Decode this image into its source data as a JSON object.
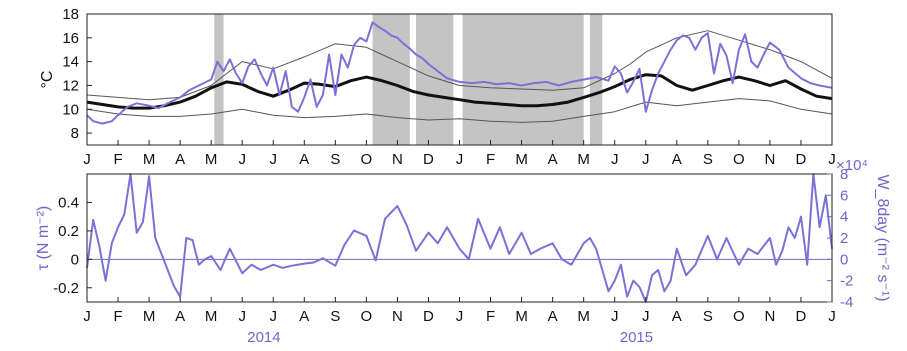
{
  "chart_data": [
    {
      "type": "line",
      "ylabel": "°C",
      "ylim": [
        7,
        18
      ],
      "yticks": [
        8,
        10,
        12,
        14,
        16,
        18
      ],
      "x_axis": {
        "unit": "month index from Jan 2014",
        "range": [
          0,
          24
        ],
        "tick_labels": [
          "J",
          "F",
          "M",
          "A",
          "M",
          "J",
          "J",
          "A",
          "S",
          "O",
          "N",
          "D",
          "J",
          "F",
          "M",
          "A",
          "M",
          "J",
          "J",
          "A",
          "S",
          "O",
          "N",
          "D",
          "J"
        ]
      },
      "shaded_gaps": [
        [
          4.1,
          4.4
        ],
        [
          9.2,
          10.4
        ],
        [
          10.6,
          11.8
        ],
        [
          12.1,
          16.0
        ],
        [
          16.2,
          16.6
        ]
      ],
      "series": [
        {
          "color": "#111111",
          "x": [
            0,
            0.5,
            1,
            1.5,
            2,
            2.5,
            3,
            3.5,
            4,
            4.5,
            5,
            5.5,
            6,
            6.5,
            7,
            7.5,
            8,
            8.5,
            9,
            9.5,
            10,
            10.5,
            11,
            11.5,
            12,
            12.5,
            13,
            13.5,
            14,
            14.5,
            15,
            15.5,
            16,
            16.5,
            17,
            17.5,
            18,
            18.5,
            19,
            19.5,
            20,
            20.5,
            21,
            21.5,
            22,
            22.5,
            23,
            23.5,
            24
          ],
          "y": [
            10.6,
            10.4,
            10.2,
            10.1,
            10.1,
            10.3,
            10.6,
            11.1,
            11.8,
            12.3,
            12.1,
            11.5,
            11.1,
            11.6,
            12.2,
            12.1,
            11.9,
            12.4,
            12.7,
            12.4,
            12.0,
            11.5,
            11.2,
            11.0,
            10.8,
            10.6,
            10.5,
            10.4,
            10.3,
            10.3,
            10.4,
            10.6,
            11.0,
            11.4,
            11.9,
            12.5,
            12.9,
            12.8,
            12.0,
            11.6,
            12.0,
            12.4,
            12.7,
            12.4,
            12.0,
            12.4,
            11.7,
            11.1,
            10.9
          ]
        },
        {
          "color": "#555555",
          "x": [
            0,
            1,
            2,
            3,
            4,
            4.5,
            5,
            6,
            7,
            8,
            9,
            9.5,
            10,
            11,
            12,
            13,
            14,
            15,
            16,
            17,
            17.5,
            18,
            19,
            20,
            21,
            22,
            23,
            24
          ],
          "y": [
            11.2,
            11.0,
            10.8,
            11.0,
            12.0,
            13.0,
            14.0,
            13.4,
            14.4,
            15.5,
            15.2,
            14.6,
            14.0,
            12.8,
            12.0,
            11.8,
            11.7,
            11.6,
            11.8,
            13.0,
            13.8,
            14.8,
            16.0,
            16.6,
            15.8,
            15.0,
            14.0,
            12.6
          ]
        },
        {
          "color": "#555555",
          "x": [
            0,
            1,
            2,
            3,
            4,
            5,
            6,
            7,
            8,
            9,
            10,
            11,
            12,
            13,
            14,
            15,
            16,
            17,
            18,
            19,
            20,
            21,
            22,
            23,
            24
          ],
          "y": [
            10.0,
            9.6,
            9.4,
            9.4,
            9.6,
            10.0,
            9.5,
            9.3,
            9.4,
            9.6,
            9.3,
            9.1,
            9.2,
            9.0,
            8.9,
            9.0,
            9.4,
            9.8,
            10.6,
            10.3,
            10.6,
            10.9,
            10.7,
            10.0,
            9.6
          ]
        },
        {
          "color": "#7b71d6",
          "x": [
            0,
            0.2,
            0.5,
            0.8,
            1.0,
            1.3,
            1.6,
            2.0,
            2.3,
            2.6,
            3.0,
            3.3,
            3.6,
            4.0,
            4.2,
            4.4,
            4.6,
            4.8,
            5.0,
            5.2,
            5.4,
            5.6,
            5.8,
            6.0,
            6.2,
            6.4,
            6.6,
            6.8,
            7.0,
            7.2,
            7.4,
            7.6,
            7.8,
            8.0,
            8.2,
            8.4,
            8.6,
            8.8,
            9.0,
            9.2,
            9.4,
            9.6,
            9.8,
            10.0,
            10.2,
            10.4,
            10.6,
            10.8,
            11.0,
            11.3,
            11.6,
            12.0,
            12.4,
            12.8,
            13.2,
            13.6,
            14.0,
            14.4,
            14.8,
            15.2,
            15.6,
            16.0,
            16.4,
            16.8,
            17.0,
            17.2,
            17.4,
            17.6,
            17.8,
            18.0,
            18.2,
            18.4,
            18.6,
            18.8,
            19.0,
            19.2,
            19.4,
            19.6,
            19.8,
            20.0,
            20.2,
            20.4,
            20.6,
            20.8,
            21.0,
            21.2,
            21.4,
            21.6,
            21.8,
            22.0,
            22.3,
            22.6,
            23.0,
            23.3,
            23.6,
            24.0
          ],
          "y": [
            9.5,
            9.0,
            8.8,
            9.0,
            9.5,
            10.2,
            10.5,
            10.3,
            10.1,
            10.5,
            11.0,
            11.6,
            12.0,
            12.5,
            14.0,
            13.2,
            14.2,
            13.0,
            12.2,
            13.6,
            14.2,
            13.0,
            12.0,
            13.5,
            11.2,
            13.2,
            10.2,
            9.8,
            11.0,
            12.5,
            10.2,
            11.2,
            14.6,
            11.2,
            14.6,
            13.5,
            15.4,
            16.0,
            15.7,
            17.3,
            16.9,
            16.6,
            16.2,
            16.0,
            15.5,
            15.1,
            14.6,
            14.3,
            13.8,
            13.2,
            12.6,
            12.3,
            12.2,
            12.3,
            12.1,
            12.2,
            12.0,
            12.2,
            12.3,
            12.0,
            12.3,
            12.5,
            12.7,
            12.4,
            13.6,
            13.0,
            11.4,
            12.3,
            13.4,
            9.8,
            11.6,
            13.0,
            14.0,
            15.0,
            15.8,
            16.2,
            16.0,
            15.0,
            16.0,
            16.4,
            13.0,
            15.5,
            14.5,
            12.2,
            15.0,
            16.3,
            14.0,
            13.5,
            14.6,
            15.6,
            15.0,
            13.5,
            12.6,
            12.2,
            12.0,
            11.8
          ]
        }
      ]
    },
    {
      "type": "line",
      "ylabel": "τ (N m⁻²)",
      "ylabel_right": "W_8day (m⁻² s⁻¹)",
      "ylim": [
        -0.3,
        0.6
      ],
      "yticks": [
        -0.2,
        0,
        0.2,
        0.4
      ],
      "ylim_right": [
        -4,
        8
      ],
      "yticks_right": [
        -4,
        -2,
        0,
        2,
        4,
        6,
        8
      ],
      "right_multiplier": "×10⁴",
      "x_axis": {
        "unit": "month index from Jan 2014",
        "range": [
          0,
          24
        ],
        "tick_labels": [
          "J",
          "F",
          "M",
          "A",
          "M",
          "J",
          "J",
          "A",
          "S",
          "O",
          "N",
          "D",
          "J",
          "F",
          "M",
          "A",
          "M",
          "J",
          "J",
          "A",
          "S",
          "O",
          "N",
          "D",
          "J"
        ],
        "year_labels": [
          {
            "label": "2014",
            "x": 5.7
          },
          {
            "label": "2015",
            "x": 17.7
          }
        ]
      },
      "series": [
        {
          "color": "#7b71d6",
          "axis": "right",
          "x": [
            0,
            0.2,
            0.4,
            0.6,
            0.8,
            1.0,
            1.2,
            1.4,
            1.6,
            1.8,
            2.0,
            2.2,
            2.4,
            2.6,
            2.8,
            3.0,
            3.2,
            3.4,
            3.6,
            3.8,
            4.0,
            4.3,
            4.6,
            5.0,
            5.3,
            5.6,
            6.0,
            6.3,
            6.6,
            7.0,
            7.3,
            7.6,
            8.0,
            8.3,
            8.6,
            9.0,
            9.3,
            9.6,
            10.0,
            10.3,
            10.6,
            11.0,
            11.3,
            11.6,
            12.0,
            12.3,
            12.6,
            13.0,
            13.3,
            13.6,
            14.0,
            14.3,
            14.6,
            15.0,
            15.3,
            15.6,
            16.0,
            16.2,
            16.4,
            16.6,
            16.8,
            17.0,
            17.2,
            17.4,
            17.6,
            17.8,
            18.0,
            18.2,
            18.4,
            18.6,
            18.8,
            19.0,
            19.3,
            19.6,
            20.0,
            20.3,
            20.6,
            21.0,
            21.3,
            21.6,
            22.0,
            22.2,
            22.4,
            22.6,
            22.8,
            23.0,
            23.2,
            23.4,
            23.6,
            23.8,
            24.0
          ],
          "y": [
            -0.8,
            3.7,
            1.2,
            -2.0,
            1.5,
            3.0,
            4.2,
            8.0,
            2.5,
            3.5,
            7.8,
            2.0,
            0.5,
            -1.0,
            -2.5,
            -3.5,
            2.0,
            1.8,
            -0.5,
            0.0,
            0.3,
            -1.0,
            1.0,
            -1.3,
            -0.5,
            -1.0,
            -0.5,
            -0.8,
            -0.6,
            -0.4,
            -0.3,
            0.1,
            -0.6,
            1.4,
            2.7,
            2.2,
            -0.1,
            3.8,
            5.0,
            3.2,
            0.8,
            2.5,
            1.5,
            3.0,
            1.0,
            0.0,
            3.8,
            1.0,
            3.0,
            0.5,
            2.5,
            0.5,
            1.0,
            1.5,
            0.0,
            -0.5,
            1.5,
            2.0,
            1.0,
            -1.0,
            -3.0,
            -2.0,
            -0.5,
            -3.5,
            -2.0,
            -2.6,
            -4.0,
            -1.5,
            -1.0,
            -3.0,
            -2.0,
            1.0,
            -1.5,
            -0.5,
            2.2,
            0.0,
            2.0,
            -0.5,
            1.0,
            0.5,
            2.0,
            -0.5,
            0.8,
            3.0,
            2.0,
            4.0,
            -0.5,
            8.0,
            3.0,
            6.0,
            1.0
          ]
        }
      ]
    }
  ]
}
